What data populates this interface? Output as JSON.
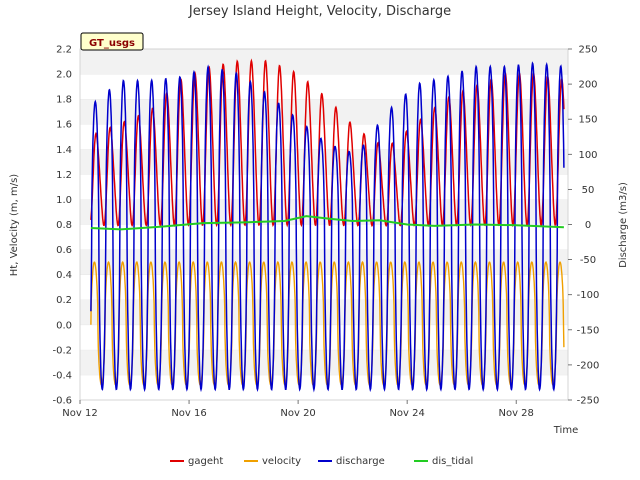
{
  "chart_data": {
    "type": "line",
    "title": "Jersey Island Height, Velocity, Discharge",
    "xlabel": "Time",
    "ylabel_left": "Ht, Velocity (m, m/s)",
    "ylabel_right": "Discharge (m3/s)",
    "x_ticks": [
      "Nov 12",
      "Nov 16",
      "Nov 20",
      "Nov 24",
      "Nov 28"
    ],
    "x_tick_days": [
      12,
      16,
      20,
      24,
      28
    ],
    "x_range_days": [
      12,
      29.9
    ],
    "y_left_range": [
      -0.6,
      2.2
    ],
    "y_left_ticks": [
      -0.6,
      -0.4,
      -0.2,
      0.0,
      0.2,
      0.4,
      0.6,
      0.8,
      1.0,
      1.2,
      1.4,
      1.6,
      1.8,
      2.0,
      2.2
    ],
    "y_right_range": [
      -250,
      250
    ],
    "y_right_ticks": [
      -250,
      -200,
      -150,
      -100,
      -50,
      0,
      50,
      100,
      150,
      200,
      250
    ],
    "data_start_day": 12.4,
    "data_end_day": 29.75,
    "tidal_period_days": 0.5175,
    "series": [
      {
        "name": "gageht",
        "color": "#e00000",
        "axis": "left",
        "mean": 1.35,
        "amplitude": 0.45,
        "peak_values": [
          1.5,
          1.6,
          1.7,
          1.95,
          2.05,
          2.1,
          2.1,
          2.0,
          1.8,
          1.55,
          1.4,
          1.6,
          1.8,
          1.9,
          2.0,
          2.0,
          1.95
        ]
      },
      {
        "name": "velocity",
        "color": "#f0a000",
        "axis": "left",
        "max": 0.5,
        "min": -0.48
      },
      {
        "name": "discharge",
        "color": "#0000cc",
        "axis": "right",
        "max_values": [
          170,
          205,
          205,
          210,
          225,
          215,
          185,
          150,
          115,
          100,
          160,
          200,
          210,
          225,
          225,
          230,
          225
        ],
        "min": -235
      },
      {
        "name": "dis_tidal",
        "color": "#22cc22",
        "axis": "right",
        "points": [
          [
            12.4,
            -5
          ],
          [
            13.5,
            -7
          ],
          [
            15,
            -3
          ],
          [
            16.5,
            2
          ],
          [
            18,
            3
          ],
          [
            19.5,
            5
          ],
          [
            20.3,
            12
          ],
          [
            21.2,
            8
          ],
          [
            22,
            5
          ],
          [
            23,
            6
          ],
          [
            24,
            0
          ],
          [
            25,
            -2
          ],
          [
            26.5,
            0
          ],
          [
            28,
            -1
          ],
          [
            29.75,
            -4
          ]
        ]
      }
    ],
    "legend": [
      "gageht",
      "velocity",
      "discharge",
      "dis_tidal"
    ],
    "legend_position": "bottom-center",
    "grid": "alternating horizontal bands"
  },
  "badge": {
    "text": "GT_usgs",
    "color": "#ffffcc",
    "text_color": "#8b0000"
  }
}
